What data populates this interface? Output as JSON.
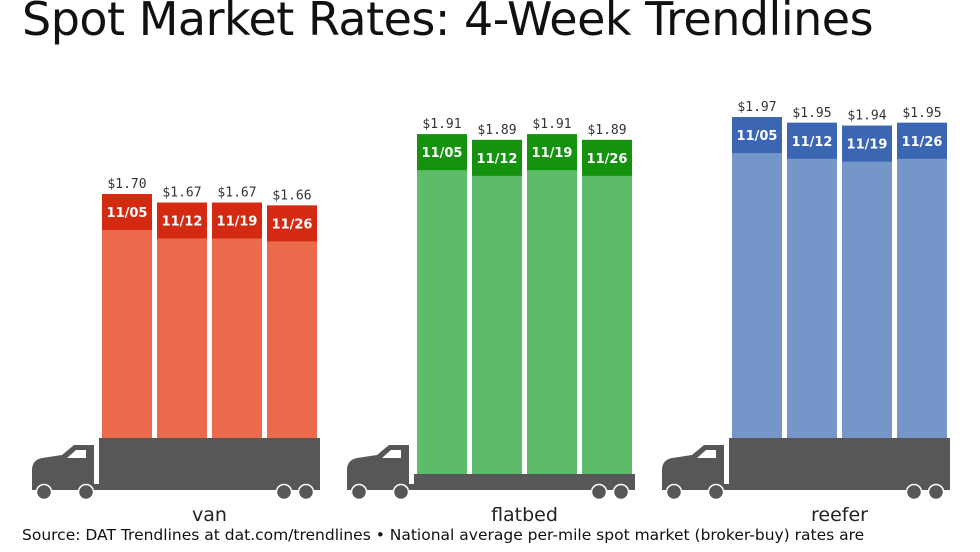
{
  "title": "Spot Market Rates: 4-Week Trendlines",
  "footer": "Source: DAT Trendlines at dat.com/trendlines • National average per-mile spot market (broker-buy) rates are",
  "chart_data": {
    "type": "bar",
    "title": "Spot Market Rates: 4-Week Trendlines",
    "xlabel": "",
    "ylabel": "",
    "weeks": [
      "11/05",
      "11/12",
      "11/19",
      "11/26"
    ],
    "series": [
      {
        "name": "van",
        "values": [
          1.7,
          1.67,
          1.67,
          1.66
        ],
        "labels": [
          "$1.70",
          "$1.67",
          "$1.67",
          "$1.66"
        ],
        "color": "#ec6a4c",
        "band_color": "#d42a12"
      },
      {
        "name": "flatbed",
        "values": [
          1.91,
          1.89,
          1.91,
          1.89
        ],
        "labels": [
          "$1.91",
          "$1.89",
          "$1.91",
          "$1.89"
        ],
        "color": "#5cbc69",
        "band_color": "#15930f"
      },
      {
        "name": "reefer",
        "values": [
          1.97,
          1.95,
          1.94,
          1.95
        ],
        "labels": [
          "$1.97",
          "$1.95",
          "$1.94",
          "$1.95"
        ],
        "color": "#7496c8",
        "band_color": "#3a66b3"
      }
    ],
    "grid": false,
    "legend": "none",
    "icon": "semi-truck-icon"
  }
}
